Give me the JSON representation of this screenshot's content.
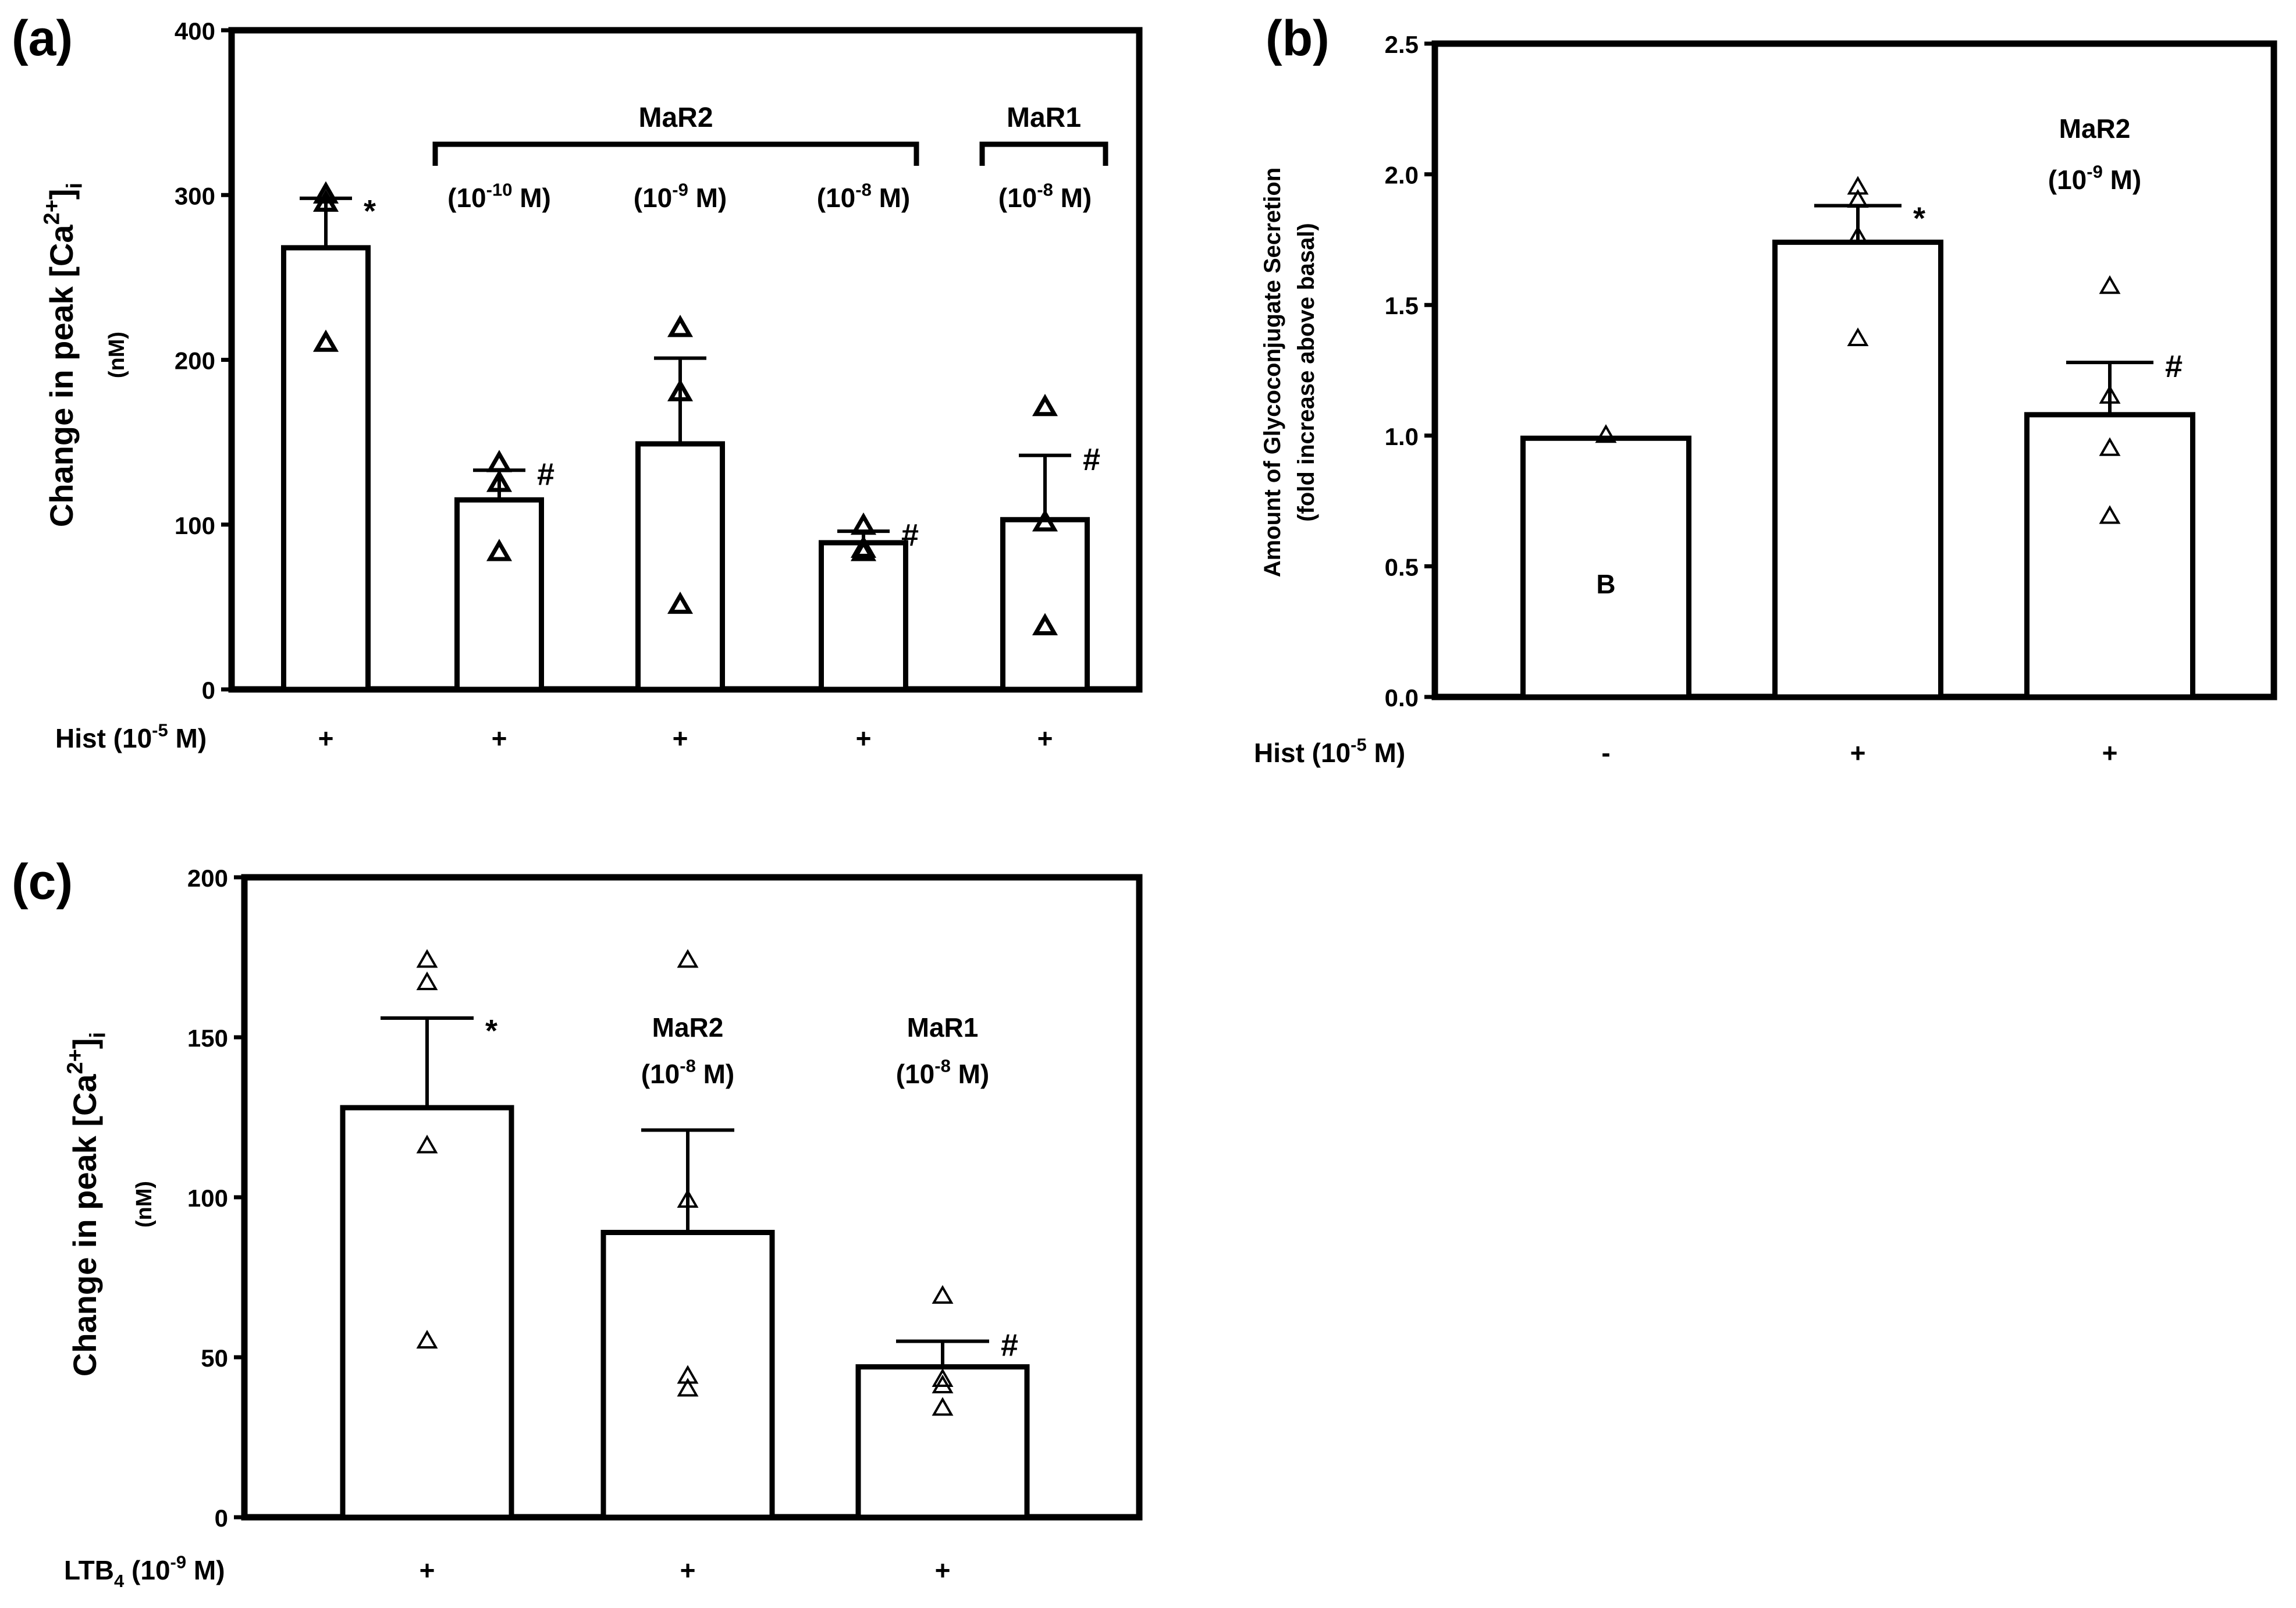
{
  "chart_data": [
    {
      "type": "bar",
      "panel_label": "(a)",
      "ylabel": "Change in peak [Ca2+]i",
      "ylabel_unit": "(nM)",
      "ylim": [
        0,
        400
      ],
      "yticks": [
        0,
        100,
        200,
        300,
        400
      ],
      "bars": [
        {
          "mean": 268,
          "sem": 30,
          "points": [
            300,
            295,
            210
          ],
          "sig": "*",
          "hist": "+"
        },
        {
          "mean": 115,
          "sem": 18,
          "points": [
            137,
            125,
            83
          ],
          "sig": "#",
          "hist": "+"
        },
        {
          "mean": 149,
          "sem": 52,
          "points": [
            219,
            180,
            51
          ],
          "sig": "",
          "hist": "+"
        },
        {
          "mean": 89,
          "sem": 7,
          "points": [
            99,
            85,
            83
          ],
          "sig": "#",
          "hist": "+"
        },
        {
          "mean": 103,
          "sem": 39,
          "points": [
            171,
            101,
            38
          ],
          "sig": "#",
          "hist": "+"
        }
      ],
      "row_label": "Hist (10-5 M)",
      "groups": [
        {
          "name": "MaR2",
          "from_bar": 1,
          "to_bar": 3
        },
        {
          "name": "MaR1",
          "from_bar": 4,
          "to_bar": 4
        }
      ],
      "concentrations": [
        {
          "bar": 1,
          "text": "(10-10 M)"
        },
        {
          "bar": 2,
          "text": "(10-9 M)"
        },
        {
          "bar": 3,
          "text": "(10-8 M)"
        },
        {
          "bar": 4,
          "text": "(10-8 M)"
        }
      ]
    },
    {
      "type": "bar",
      "panel_label": "(b)",
      "ylabel": "Amount of Glycoconjugate Secretion",
      "ylabel_sub": "(fold increase above basal)",
      "ylim": [
        0,
        2.5
      ],
      "yticks": [
        0.0,
        0.5,
        1.0,
        1.5,
        2.0,
        2.5
      ],
      "bars": [
        {
          "mean": 0.99,
          "sem": 0,
          "points": [
            1.0
          ],
          "sig": "",
          "hist": "-",
          "inner_label": "B"
        },
        {
          "mean": 1.74,
          "sem": 0.14,
          "points": [
            1.95,
            1.9,
            1.76,
            1.37
          ],
          "sig": "*",
          "hist": "+"
        },
        {
          "mean": 1.08,
          "sem": 0.2,
          "points": [
            1.57,
            1.15,
            0.95,
            0.69
          ],
          "sig": "#",
          "hist": "+"
        }
      ],
      "row_label": "Hist (10-5 M)",
      "treatment_note": {
        "name": "MaR2",
        "conc": "(10-9 M)"
      }
    },
    {
      "type": "bar",
      "panel_label": "(c)",
      "ylabel": "Change in peak [Ca2+]i",
      "ylabel_unit": "(nM)",
      "ylim": [
        0,
        200
      ],
      "yticks": [
        0,
        50,
        100,
        150,
        200
      ],
      "bars": [
        {
          "mean": 128,
          "sem": 28,
          "points": [
            174,
            167,
            116,
            55
          ],
          "sig": "*",
          "ltb": "+"
        },
        {
          "mean": 89,
          "sem": 32,
          "points": [
            174,
            99,
            44,
            40
          ],
          "sig": "",
          "ltb": "+",
          "note_name": "MaR2",
          "note_conc": "(10-8 M)"
        },
        {
          "mean": 47,
          "sem": 8,
          "points": [
            69,
            43,
            41,
            34
          ],
          "sig": "#",
          "ltb": "+",
          "note_name": "MaR1",
          "note_conc": "(10-8 M)"
        }
      ],
      "row_label": "LTB4 (10-9 M)"
    }
  ]
}
